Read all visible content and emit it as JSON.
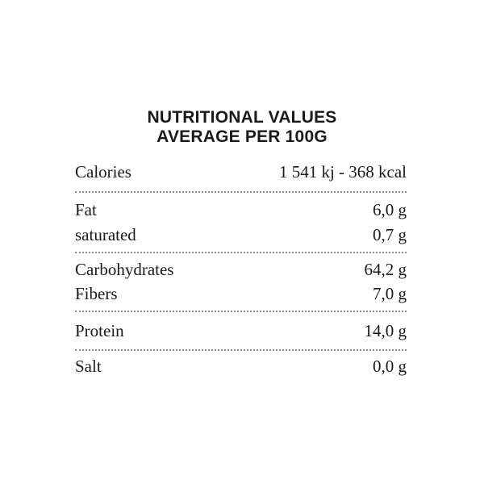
{
  "header": {
    "line1": "NUTRITIONAL VALUES",
    "line2": "AVERAGE PER 100G"
  },
  "rows": [
    {
      "label": "Calories",
      "value": "1 541 kj - 368 kcal"
    },
    {
      "label": "Fat",
      "value": "6,0 g"
    },
    {
      "label": "saturated",
      "value": "0,7 g"
    },
    {
      "label": "Carbohydrates",
      "value": "64,2 g"
    },
    {
      "label": "Fibers",
      "value": "7,0 g"
    },
    {
      "label": "Protein",
      "value": "14,0 g"
    },
    {
      "label": "Salt",
      "value": "0,0 g"
    }
  ],
  "colors": {
    "text": "#1a1a1a",
    "separator": "#8a8a8a",
    "background": "#ffffff"
  }
}
